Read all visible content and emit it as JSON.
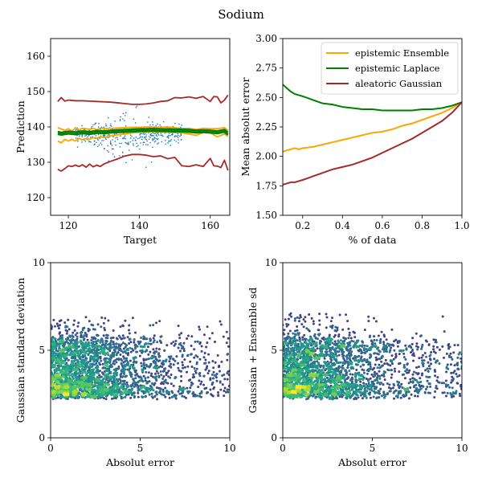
{
  "figure": {
    "title": "Sodium"
  },
  "colors": {
    "ensemble": "#FFA500",
    "laplace": "#007F00",
    "gaussian": "#A52A2A",
    "scatter_blue": "#1F77B4"
  },
  "chart_data": [
    {
      "id": "prediction",
      "type": "line",
      "title": "",
      "xlabel": "Target",
      "ylabel": "Prediction",
      "xlim": [
        115,
        165.5
      ],
      "ylim": [
        115,
        165
      ],
      "xticks": [
        120,
        140,
        160
      ],
      "yticks": [
        120,
        130,
        140,
        150,
        160
      ],
      "grid": false,
      "series": [
        {
          "key": "gauss_upper",
          "color": "#A52A2A",
          "x": [
            117,
            118,
            119,
            120,
            122,
            124,
            126,
            128,
            130,
            132,
            134,
            136,
            138,
            140,
            142,
            144,
            146,
            148,
            150,
            152,
            154,
            156,
            158,
            160,
            161,
            162,
            163,
            164,
            165
          ],
          "y": [
            147.2,
            148.3,
            147.3,
            147.6,
            147.4,
            147.4,
            147.3,
            147.2,
            147.1,
            147.0,
            146.8,
            146.6,
            146.4,
            146.4,
            146.5,
            146.8,
            147.2,
            147.4,
            148.3,
            148.2,
            148.5,
            148.1,
            148.6,
            147.2,
            148.6,
            148.5,
            146.8,
            147.6,
            149.0
          ]
        },
        {
          "key": "gauss_lower",
          "color": "#A52A2A",
          "x": [
            117,
            118,
            119,
            120,
            121,
            122,
            123,
            124,
            125,
            126,
            127,
            128,
            129,
            130,
            132,
            134,
            136,
            138,
            140,
            142,
            144,
            146,
            148,
            150,
            152,
            154,
            156,
            158,
            160,
            161,
            162,
            163,
            164,
            165
          ],
          "y": [
            128.0,
            127.5,
            128.2,
            129.0,
            128.8,
            129.2,
            128.8,
            129.3,
            128.6,
            129.5,
            128.7,
            129.2,
            128.8,
            129.5,
            130.3,
            131.0,
            131.8,
            132.2,
            132.2,
            132.0,
            131.6,
            131.8,
            131.0,
            131.4,
            129.0,
            128.8,
            129.3,
            128.8,
            131.1,
            129.0,
            128.9,
            128.5,
            130.6,
            127.7
          ]
        },
        {
          "key": "ens_upper",
          "color": "#FFA500",
          "x": [
            117,
            118,
            119,
            120,
            121,
            122,
            123,
            124,
            125,
            126,
            127,
            128,
            129,
            130,
            132,
            134,
            136,
            138,
            140,
            142,
            144,
            146,
            148,
            150,
            152,
            154,
            156,
            158,
            160,
            162,
            164,
            165
          ],
          "y": [
            139.8,
            139.4,
            139.0,
            139.5,
            138.8,
            139.8,
            139.2,
            139.6,
            139.5,
            139.3,
            139.6,
            139.2,
            139.7,
            139.5,
            139.6,
            139.7,
            139.8,
            139.9,
            139.9,
            140.0,
            140.0,
            139.9,
            140.0,
            139.8,
            139.5,
            139.6,
            139.3,
            139.6,
            139.5,
            139.5,
            139.8,
            139.0
          ]
        },
        {
          "key": "ens_lower",
          "color": "#FFA500",
          "x": [
            117,
            118,
            119,
            120,
            121,
            122,
            123,
            124,
            125,
            126,
            127,
            128,
            129,
            130,
            132,
            134,
            136,
            138,
            140,
            142,
            144,
            146,
            148,
            150,
            152,
            154,
            156,
            158,
            160,
            162,
            164,
            165
          ],
          "y": [
            136.0,
            135.5,
            136.5,
            136.0,
            136.5,
            136.0,
            136.8,
            136.3,
            136.8,
            136.5,
            137.0,
            136.8,
            137.2,
            137.0,
            137.5,
            137.8,
            138.0,
            138.3,
            138.5,
            138.6,
            138.7,
            138.6,
            138.5,
            138.4,
            138.3,
            138.0,
            137.6,
            138.4,
            138.3,
            137.2,
            138.0,
            137.3
          ]
        },
        {
          "key": "lap_upper",
          "color": "#007F00",
          "x": [
            117,
            118,
            120,
            122,
            124,
            126,
            128,
            130,
            132,
            134,
            136,
            138,
            140,
            142,
            144,
            146,
            148,
            150,
            152,
            154,
            156,
            158,
            160,
            162,
            164,
            165
          ],
          "y": [
            138.6,
            138.4,
            138.7,
            138.5,
            138.8,
            138.6,
            138.9,
            138.8,
            139.0,
            139.1,
            139.2,
            139.3,
            139.4,
            139.4,
            139.5,
            139.4,
            139.4,
            139.3,
            139.3,
            139.2,
            139.0,
            139.1,
            139.0,
            138.8,
            139.2,
            138.4
          ]
        },
        {
          "key": "lap_lower",
          "color": "#007F00",
          "x": [
            117,
            118,
            120,
            122,
            124,
            126,
            128,
            130,
            132,
            134,
            136,
            138,
            140,
            142,
            144,
            146,
            148,
            150,
            152,
            154,
            156,
            158,
            160,
            162,
            164,
            165
          ],
          "y": [
            138.0,
            137.8,
            138.1,
            137.9,
            138.2,
            138.0,
            138.3,
            138.2,
            138.4,
            138.5,
            138.6,
            138.7,
            138.8,
            138.8,
            138.9,
            138.8,
            138.8,
            138.7,
            138.7,
            138.6,
            138.4,
            138.5,
            138.4,
            138.2,
            138.6,
            137.8
          ]
        }
      ]
    },
    {
      "id": "mae",
      "type": "line",
      "title": "",
      "xlabel": "% of data",
      "ylabel": "Mean absolut error",
      "xlim": [
        0.1,
        1.0
      ],
      "ylim": [
        1.5,
        3.0
      ],
      "xticks": [
        0.2,
        0.4,
        0.6,
        0.8,
        1.0
      ],
      "xtick_labels": [
        "0.2",
        "0.4",
        "0.6",
        "0.8",
        "1.0"
      ],
      "yticks": [
        1.5,
        1.75,
        2.0,
        2.25,
        2.5,
        2.75,
        3.0
      ],
      "ytick_labels": [
        "1.50",
        "1.75",
        "2.00",
        "2.25",
        "2.50",
        "2.75",
        "3.00"
      ],
      "legend_position": "top-right",
      "grid": false,
      "series": [
        {
          "key": "ensemble",
          "name": "epistemic Ensemble",
          "color": "#FFA500",
          "x": [
            0.1,
            0.12,
            0.14,
            0.16,
            0.18,
            0.2,
            0.25,
            0.3,
            0.35,
            0.4,
            0.45,
            0.5,
            0.55,
            0.6,
            0.65,
            0.7,
            0.75,
            0.8,
            0.85,
            0.9,
            0.95,
            1.0
          ],
          "y": [
            2.04,
            2.05,
            2.06,
            2.07,
            2.06,
            2.07,
            2.08,
            2.1,
            2.12,
            2.14,
            2.16,
            2.18,
            2.2,
            2.21,
            2.23,
            2.26,
            2.28,
            2.31,
            2.34,
            2.37,
            2.41,
            2.46
          ]
        },
        {
          "key": "laplace",
          "name": "epistemic Laplace",
          "color": "#007F00",
          "x": [
            0.1,
            0.12,
            0.14,
            0.16,
            0.18,
            0.2,
            0.25,
            0.3,
            0.35,
            0.4,
            0.45,
            0.5,
            0.55,
            0.6,
            0.65,
            0.7,
            0.75,
            0.8,
            0.85,
            0.9,
            0.95,
            1.0
          ],
          "y": [
            2.61,
            2.58,
            2.55,
            2.53,
            2.52,
            2.51,
            2.48,
            2.45,
            2.44,
            2.42,
            2.41,
            2.4,
            2.4,
            2.39,
            2.39,
            2.39,
            2.39,
            2.4,
            2.4,
            2.41,
            2.43,
            2.46
          ]
        },
        {
          "key": "gaussian",
          "name": "aleatoric Gaussian",
          "color": "#A52A2A",
          "x": [
            0.1,
            0.12,
            0.14,
            0.16,
            0.18,
            0.2,
            0.25,
            0.3,
            0.35,
            0.4,
            0.45,
            0.5,
            0.55,
            0.6,
            0.65,
            0.7,
            0.75,
            0.8,
            0.85,
            0.9,
            0.95,
            1.0
          ],
          "y": [
            1.76,
            1.77,
            1.78,
            1.78,
            1.79,
            1.8,
            1.83,
            1.86,
            1.89,
            1.91,
            1.93,
            1.96,
            1.99,
            2.03,
            2.07,
            2.11,
            2.15,
            2.2,
            2.25,
            2.3,
            2.37,
            2.46
          ]
        }
      ]
    },
    {
      "id": "gauss_sd",
      "type": "scatter",
      "title": "",
      "xlabel": "Absolut error",
      "ylabel": "Gaussian standard deviation",
      "xlim": [
        0,
        10
      ],
      "ylim": [
        0,
        10
      ],
      "xticks": [
        0,
        5,
        10
      ],
      "yticks": [
        0,
        5,
        10
      ],
      "grid": false,
      "colormap": "viridis",
      "x_range": [
        0,
        10
      ],
      "y_range": [
        2.2,
        7.0
      ]
    },
    {
      "id": "combined_sd",
      "type": "scatter",
      "title": "",
      "xlabel": "Absolut error",
      "ylabel": "Gaussian + Ensemble sd",
      "xlim": [
        0,
        10
      ],
      "ylim": [
        0,
        10
      ],
      "xticks": [
        0,
        5,
        10
      ],
      "yticks": [
        0,
        5,
        10
      ],
      "grid": false,
      "colormap": "viridis",
      "x_range": [
        0,
        10
      ],
      "y_range": [
        2.2,
        7.2
      ]
    }
  ]
}
